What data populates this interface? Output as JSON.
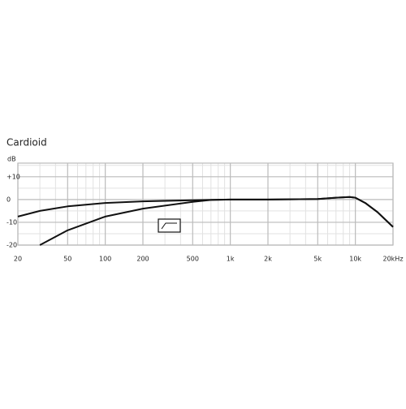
{
  "chart_data": {
    "type": "line",
    "title": "Cardioid",
    "ylabel": "dB",
    "xscale": "log",
    "grid": true,
    "xlim": [
      20,
      20000
    ],
    "ylim": [
      -20,
      16
    ],
    "xticks": [
      20,
      50,
      100,
      200,
      500,
      {
        "value": 1000,
        "label": "1k"
      },
      {
        "value": 2000,
        "label": "2k"
      },
      {
        "value": 5000,
        "label": "5k"
      },
      {
        "value": 10000,
        "label": "10k"
      },
      {
        "value": 20000,
        "label": "20kHz"
      }
    ],
    "xminor": [
      30,
      40,
      60,
      70,
      80,
      90,
      300,
      400,
      600,
      700,
      800,
      900,
      3000,
      4000,
      6000,
      7000,
      8000,
      9000
    ],
    "yticks": [
      {
        "value": 10,
        "label": "+10"
      },
      0,
      -10,
      -20
    ],
    "yminor": [
      15,
      5,
      -5,
      -15
    ],
    "series": [
      {
        "color": "#111111",
        "x": [
          20,
          30,
          50,
          100,
          200,
          500,
          1000,
          2000,
          5000,
          7000,
          9000,
          10000,
          12000,
          15000,
          20000
        ],
        "values": [
          -7.5,
          -5,
          -3,
          -1.5,
          -0.8,
          -0.3,
          0,
          0,
          0.2,
          0.8,
          1.1,
          0.8,
          -1.5,
          -5.5,
          -12
        ]
      },
      {
        "color": "#111111",
        "x": [
          30,
          50,
          100,
          200,
          500,
          700,
          1000,
          2000,
          5000,
          7000,
          9000,
          10000,
          12000,
          15000,
          20000
        ],
        "values": [
          -20,
          -13.5,
          -7.5,
          -4,
          -1,
          -0.2,
          0,
          0,
          0.2,
          0.8,
          1.1,
          0.8,
          -1.5,
          -5.5,
          -12
        ]
      }
    ]
  }
}
